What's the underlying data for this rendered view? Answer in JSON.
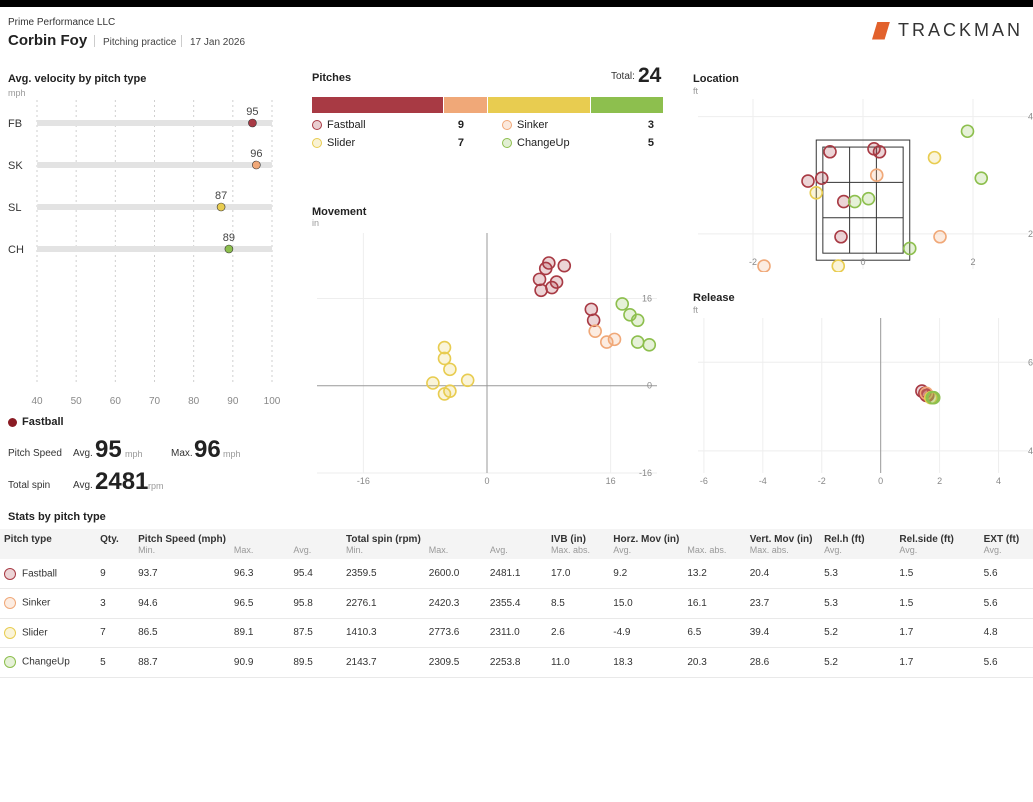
{
  "header": {
    "org": "Prime Performance LLC",
    "player": "Corbin Foy",
    "session_type": "Pitching practice",
    "date": "17 Jan 2026",
    "brand": "TRACKMAN"
  },
  "colors": {
    "fastball": "#a83a44",
    "sinker": "#f0a878",
    "slider": "#e8cc50",
    "changeup": "#8dbf4e",
    "brand_accent": "#e2612c"
  },
  "velocity": {
    "title": "Avg. velocity by pitch type",
    "unit": "mph",
    "axis_ticks": [
      "40",
      "50",
      "60",
      "70",
      "80",
      "90",
      "100"
    ],
    "rows": [
      {
        "label": "FB",
        "value": 95,
        "value_text": "95"
      },
      {
        "label": "SK",
        "value": 96,
        "value_text": "96"
      },
      {
        "label": "SL",
        "value": 87,
        "value_text": "87"
      },
      {
        "label": "CH",
        "value": 89,
        "value_text": "89"
      }
    ]
  },
  "pitches": {
    "title": "Pitches",
    "total_label": "Total:",
    "total": "24",
    "types": [
      {
        "name": "Fastball",
        "count": 9,
        "count_text": "9"
      },
      {
        "name": "Sinker",
        "count": 3,
        "count_text": "3"
      },
      {
        "name": "Slider",
        "count": 7,
        "count_text": "7"
      },
      {
        "name": "ChangeUp",
        "count": 5,
        "count_text": "5"
      }
    ]
  },
  "selected": {
    "pitch": "Fastball",
    "speed_label": "Pitch Speed",
    "spin_label": "Total spin",
    "avg_label": "Avg.",
    "max_label": "Max.",
    "speed_avg": "95",
    "speed_max": "96",
    "speed_unit": "mph",
    "spin_avg": "2481",
    "spin_unit": "rpm"
  },
  "movement": {
    "title": "Movement",
    "unit": "in",
    "x_ticks": [
      "-16",
      "0",
      "16"
    ],
    "y_ticks": [
      "16",
      "0",
      "-16"
    ]
  },
  "location": {
    "title": "Location",
    "unit": "ft",
    "x_ticks": [
      "-2",
      "0",
      "2"
    ],
    "y_ticks": [
      "4",
      "2"
    ]
  },
  "release": {
    "title": "Release",
    "unit": "ft",
    "x_ticks": [
      "-6",
      "-4",
      "-2",
      "0",
      "2",
      "4"
    ],
    "y_ticks": [
      "6",
      "4"
    ]
  },
  "chart_data": [
    {
      "type": "bar",
      "title": "Avg. velocity by pitch type",
      "categories": [
        "FB",
        "SK",
        "SL",
        "CH"
      ],
      "values": [
        95,
        96,
        87,
        89
      ],
      "xlim": [
        40,
        100
      ],
      "xlabel": "mph"
    },
    {
      "type": "scatter",
      "title": "Movement",
      "xlabel": "in",
      "ylabel": "in",
      "xlim": [
        -22,
        22
      ],
      "ylim": [
        -16,
        28
      ],
      "series": [
        {
          "name": "Fastball",
          "points": [
            [
              8,
              22.5
            ],
            [
              10,
              22
            ],
            [
              7.6,
              21.5
            ],
            [
              6.8,
              19.5
            ],
            [
              9,
              19
            ],
            [
              8.4,
              18
            ],
            [
              7,
              17.5
            ],
            [
              13.5,
              14
            ],
            [
              13.8,
              12
            ]
          ]
        },
        {
          "name": "Sinker",
          "points": [
            [
              14,
              10
            ],
            [
              16.5,
              8.5
            ],
            [
              15.5,
              8
            ]
          ]
        },
        {
          "name": "Slider",
          "points": [
            [
              -5.5,
              7
            ],
            [
              -5.5,
              5
            ],
            [
              -4.8,
              3
            ],
            [
              -7,
              0.5
            ],
            [
              -2.5,
              1
            ],
            [
              -5.5,
              -1.5
            ],
            [
              -4.8,
              -1
            ]
          ]
        },
        {
          "name": "ChangeUp",
          "points": [
            [
              17.5,
              15
            ],
            [
              18.5,
              13
            ],
            [
              19.5,
              12
            ],
            [
              19.5,
              8
            ],
            [
              21,
              7.5
            ]
          ]
        }
      ]
    },
    {
      "type": "scatter",
      "title": "Location",
      "xlabel": "ft",
      "ylabel": "ft",
      "xlim": [
        -3,
        3
      ],
      "ylim": [
        1.4,
        4.3
      ],
      "series": [
        {
          "name": "Fastball",
          "points": [
            [
              -0.6,
              3.4
            ],
            [
              0.2,
              3.45
            ],
            [
              0.3,
              3.4
            ],
            [
              -1,
              2.9
            ],
            [
              -0.75,
              2.95
            ],
            [
              -0.35,
              2.55
            ],
            [
              -0.4,
              1.95
            ]
          ]
        },
        {
          "name": "Sinker",
          "points": [
            [
              0.25,
              3.0
            ],
            [
              1.4,
              1.95
            ],
            [
              -1.8,
              1.45
            ]
          ]
        },
        {
          "name": "Slider",
          "points": [
            [
              -0.85,
              2.7
            ],
            [
              1.3,
              3.3
            ],
            [
              -0.45,
              1.45
            ]
          ]
        },
        {
          "name": "ChangeUp",
          "points": [
            [
              1.9,
              3.75
            ],
            [
              2.15,
              2.95
            ],
            [
              -0.15,
              2.55
            ],
            [
              0.1,
              2.6
            ],
            [
              0.85,
              1.75
            ]
          ]
        }
      ]
    },
    {
      "type": "scatter",
      "title": "Release",
      "xlabel": "ft",
      "ylabel": "ft",
      "xlim": [
        -6.2,
        5
      ],
      "ylim": [
        3.5,
        7
      ],
      "series": [
        {
          "name": "Fastball",
          "points": [
            [
              1.4,
              5.35
            ],
            [
              1.5,
              5.3
            ],
            [
              1.55,
              5.25
            ],
            [
              1.6,
              5.25
            ]
          ]
        },
        {
          "name": "Sinker",
          "points": [
            [
              1.55,
              5.3
            ]
          ]
        },
        {
          "name": "Slider",
          "points": [
            [
              1.7,
              5.2
            ]
          ]
        },
        {
          "name": "ChangeUp",
          "points": [
            [
              1.75,
              5.2
            ],
            [
              1.8,
              5.2
            ]
          ]
        }
      ]
    }
  ],
  "stats": {
    "title": "Stats by pitch type",
    "head1": [
      "Pitch type",
      "Qty.",
      "Pitch Speed (mph)",
      "",
      "",
      "Total spin (rpm)",
      "",
      "",
      "IVB (in)",
      "Horz. Mov (in)",
      "",
      "Vert. Mov (in)",
      "Rel.h (ft)",
      "Rel.side (ft)",
      "EXT (ft)"
    ],
    "head2": [
      "",
      "",
      "Min.",
      "Max.",
      "Avg.",
      "Min.",
      "Max.",
      "Avg.",
      "Max. abs.",
      "Avg.",
      "Max. abs.",
      "Max. abs.",
      "Avg.",
      "Avg.",
      "Avg."
    ],
    "rows": [
      {
        "type": "Fastball",
        "cells": [
          "9",
          "93.7",
          "96.3",
          "95.4",
          "2359.5",
          "2600.0",
          "2481.1",
          "17.0",
          "9.2",
          "13.2",
          "20.4",
          "5.3",
          "1.5",
          "5.6"
        ]
      },
      {
        "type": "Sinker",
        "cells": [
          "3",
          "94.6",
          "96.5",
          "95.8",
          "2276.1",
          "2420.3",
          "2355.4",
          "8.5",
          "15.0",
          "16.1",
          "23.7",
          "5.3",
          "1.5",
          "5.6"
        ]
      },
      {
        "type": "Slider",
        "cells": [
          "7",
          "86.5",
          "89.1",
          "87.5",
          "1410.3",
          "2773.6",
          "2311.0",
          "2.6",
          "-4.9",
          "6.5",
          "39.4",
          "5.2",
          "1.7",
          "4.8"
        ]
      },
      {
        "type": "ChangeUp",
        "cells": [
          "5",
          "88.7",
          "90.9",
          "89.5",
          "2143.7",
          "2309.5",
          "2253.8",
          "11.0",
          "18.3",
          "20.3",
          "28.6",
          "5.2",
          "1.7",
          "5.6"
        ]
      }
    ]
  }
}
